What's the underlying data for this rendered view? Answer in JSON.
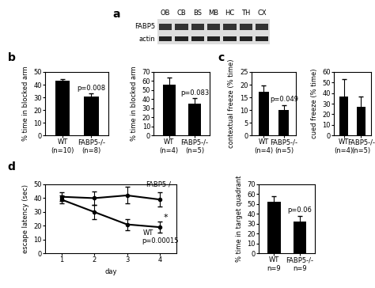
{
  "panel_labels": [
    "a",
    "b",
    "c",
    "d"
  ],
  "blot": {
    "lanes": [
      "OB",
      "CB",
      "BS",
      "MB",
      "HC",
      "TH",
      "CX"
    ],
    "rows": [
      "FABP5",
      "actin"
    ]
  },
  "chart_data": [
    {
      "type": "bar",
      "ylabel": "% time in blocked arm",
      "categories": [
        "WT\n(n=10)",
        "FABP5-/-\n(n=8)"
      ],
      "values": [
        43,
        30.5
      ],
      "errors": [
        1.5,
        2.5
      ],
      "color": "#000000",
      "annotation": "p=0.008",
      "ylim": [
        0,
        50
      ],
      "yticks": [
        0,
        10,
        20,
        30,
        40,
        50
      ]
    },
    {
      "type": "bar",
      "ylabel": "% time in blocked arm",
      "categories": [
        "WT\n(n=4)",
        "FABP5-/-\n(n=5)"
      ],
      "values": [
        56,
        35
      ],
      "errors": [
        8,
        6
      ],
      "color": "#000000",
      "annotation": "p=0.083",
      "ylim": [
        0,
        70
      ],
      "yticks": [
        0,
        10,
        20,
        30,
        40,
        50,
        60,
        70
      ]
    },
    {
      "type": "bar",
      "ylabel": "contextual freeze (% time)",
      "categories": [
        "WT\n(n=4)",
        "FABP5-/-\n(n=5)"
      ],
      "values": [
        17.3,
        10
      ],
      "errors": [
        2.5,
        2
      ],
      "color": "#000000",
      "annotation": "p=0.049",
      "ylim": [
        0,
        25
      ],
      "yticks": [
        0,
        5,
        10,
        15,
        20,
        25
      ]
    },
    {
      "type": "bar",
      "ylabel": "cued freeze (% time)",
      "categories": [
        "WT\n(n=4)",
        "FABP5-/-\n(n=5)"
      ],
      "values": [
        37,
        27
      ],
      "errors": [
        16,
        10
      ],
      "color": "#000000",
      "ylim": [
        0,
        60
      ],
      "yticks": [
        0,
        10,
        20,
        30,
        40,
        50,
        60
      ]
    },
    {
      "type": "line",
      "xlabel": "day",
      "ylabel": "escape latency (sec)",
      "x": [
        1,
        2,
        3,
        4
      ],
      "series": [
        {
          "name": "FABP5-/-",
          "color": "#000000",
          "marker": "o",
          "values": [
            41,
            40,
            42,
            39
          ],
          "errors": [
            3,
            5,
            6,
            5
          ]
        },
        {
          "name": "WT",
          "color": "#000000",
          "marker": "o",
          "values": [
            39,
            30,
            21,
            19
          ],
          "errors": [
            3,
            5,
            4,
            4
          ],
          "note": "*"
        }
      ],
      "annotation": "p=0.00015",
      "xlim": [
        0.5,
        4.5
      ],
      "xticks": [
        1,
        2,
        3,
        4
      ],
      "ylim": [
        0,
        50
      ],
      "yticks": [
        0,
        10,
        20,
        30,
        40,
        50
      ]
    },
    {
      "type": "bar",
      "ylabel": "% time in target quadrant",
      "categories": [
        "WT\nn=9",
        "FABP5-/-\nn=9"
      ],
      "values": [
        52,
        32
      ],
      "errors": [
        6,
        6
      ],
      "color": "#000000",
      "annotation": "p=0.06",
      "ylim": [
        0,
        70
      ],
      "yticks": [
        0,
        10,
        20,
        30,
        40,
        50,
        60,
        70
      ]
    }
  ]
}
